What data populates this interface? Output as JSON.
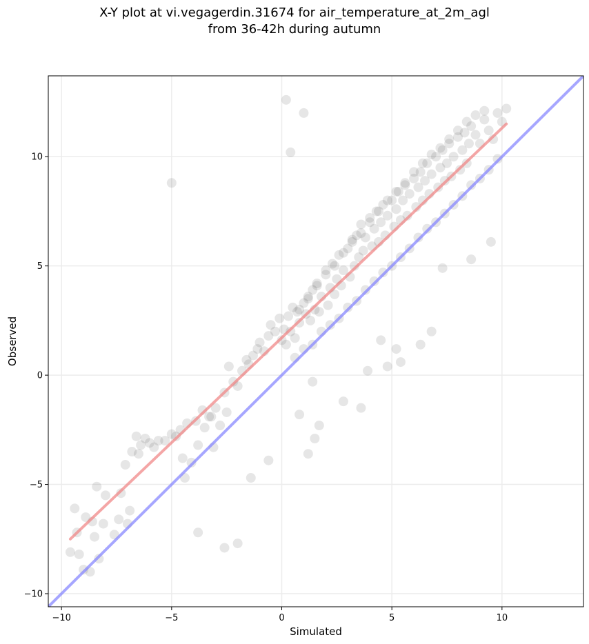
{
  "chart_data": {
    "type": "scatter",
    "title_line1": "X-Y plot at vi.vegagerdin.31674 for air_temperature_at_2m_agl",
    "title_line2": "from 36-42h during autumn",
    "xlabel": "Simulated",
    "ylabel": "Observed",
    "xlim": [
      -10.6,
      13.7
    ],
    "ylim": [
      -10.6,
      13.7
    ],
    "xticks": [
      -10,
      -5,
      0,
      5,
      10
    ],
    "yticks": [
      -10,
      -5,
      0,
      5,
      10
    ],
    "xtick_labels": [
      "−10",
      "−5",
      "0",
      "5",
      "10"
    ],
    "ytick_labels": [
      "−10",
      "−5",
      "0",
      "5",
      "10"
    ],
    "grid": true,
    "point_color": "#333333",
    "point_opacity": 0.12,
    "fit_line": {
      "color": "#f08080",
      "x": [
        -9.6,
        10.2
      ],
      "y": [
        -7.5,
        11.5
      ]
    },
    "identity_line": {
      "color": "#8080ff",
      "x": [
        -10.6,
        13.7
      ],
      "y": [
        -10.6,
        13.7
      ]
    },
    "points_x": [
      -9.6,
      -9.4,
      -9.3,
      -9.2,
      -9.0,
      -8.9,
      -8.7,
      -8.6,
      -8.5,
      -8.4,
      -8.3,
      -8.1,
      -8.0,
      -7.6,
      -7.4,
      -7.3,
      -7.1,
      -7.0,
      -6.9,
      -6.8,
      -6.6,
      -6.5,
      -6.4,
      -6.2,
      -6.0,
      -5.8,
      -5.6,
      -5.3,
      -5.0,
      -4.8,
      -4.6,
      -4.5,
      -4.3,
      -4.1,
      -3.9,
      -3.8,
      -3.6,
      -3.5,
      -3.3,
      -3.1,
      -3.0,
      -2.8,
      -2.6,
      -2.5,
      -2.4,
      -2.2,
      -2.0,
      -1.8,
      -1.6,
      -1.5,
      -1.3,
      -1.1,
      -1.0,
      -0.8,
      -0.6,
      -0.5,
      -0.3,
      -0.1,
      0.0,
      0.1,
      0.2,
      0.3,
      0.4,
      0.5,
      0.6,
      0.7,
      0.8,
      1.0,
      1.1,
      1.2,
      1.3,
      1.4,
      1.5,
      1.6,
      1.7,
      1.8,
      2.0,
      2.1,
      2.2,
      2.3,
      2.4,
      2.5,
      2.6,
      2.7,
      2.8,
      3.0,
      3.1,
      3.2,
      3.3,
      3.4,
      3.5,
      3.6,
      3.7,
      3.8,
      4.0,
      4.1,
      4.2,
      4.3,
      4.4,
      4.5,
      4.6,
      4.7,
      4.8,
      5.0,
      5.1,
      5.2,
      5.3,
      5.4,
      5.5,
      5.6,
      5.7,
      5.8,
      6.0,
      6.1,
      6.2,
      6.3,
      6.4,
      6.5,
      6.6,
      6.7,
      6.8,
      7.0,
      7.1,
      7.2,
      7.3,
      7.4,
      7.5,
      7.6,
      7.7,
      7.8,
      8.0,
      8.1,
      8.2,
      8.3,
      8.4,
      8.5,
      8.6,
      8.8,
      9.0,
      9.2,
      9.4,
      9.6,
      9.8,
      10.0,
      10.2,
      0.2,
      0.6,
      1.0,
      1.4,
      1.8,
      2.2,
      2.6,
      3.0,
      3.4,
      3.8,
      4.2,
      4.6,
      5.0,
      5.4,
      5.8,
      6.2,
      6.6,
      7.0,
      7.4,
      7.8,
      8.2,
      8.6,
      9.0,
      9.4,
      9.8,
      0.4,
      0.8,
      1.2,
      1.6,
      2.0,
      2.4,
      2.8,
      3.2,
      3.6,
      4.0,
      4.4,
      4.8,
      5.2,
      5.6,
      6.0,
      6.4,
      6.8,
      7.2,
      7.6,
      8.0,
      8.4,
      8.8,
      9.2,
      1.0,
      1.2,
      1.5,
      1.7,
      2.8,
      3.6,
      3.9,
      4.5,
      4.8,
      5.2,
      5.4,
      6.3,
      6.8,
      7.3,
      8.6,
      9.5,
      -5.0,
      -3.8,
      -2.6,
      -2.0,
      -4.4,
      -3.2,
      -1.4,
      -0.6,
      0.8,
      1.4
    ],
    "points_y": [
      -8.1,
      -6.1,
      -7.2,
      -8.2,
      -8.9,
      -6.5,
      -9.0,
      -6.7,
      -7.4,
      -5.1,
      -8.4,
      -6.8,
      -5.5,
      -7.3,
      -6.6,
      -5.4,
      -4.1,
      -6.8,
      -6.2,
      -3.5,
      -2.8,
      -3.6,
      -3.2,
      -2.9,
      -3.1,
      -3.3,
      -3.0,
      -3.0,
      -2.7,
      -2.8,
      -2.5,
      -3.8,
      -2.2,
      -4.0,
      -2.1,
      -3.2,
      -1.6,
      -2.4,
      -1.9,
      -3.3,
      -1.5,
      -2.3,
      -0.8,
      -1.7,
      0.4,
      -0.3,
      -0.5,
      0.2,
      0.7,
      0.5,
      0.9,
      1.2,
      1.5,
      1.1,
      1.8,
      2.3,
      2.0,
      2.6,
      1.6,
      2.1,
      1.4,
      2.7,
      2.0,
      3.1,
      1.7,
      2.9,
      2.4,
      3.3,
      2.8,
      3.6,
      2.5,
      3.9,
      3.0,
      4.2,
      2.9,
      3.6,
      4.8,
      3.2,
      4.0,
      5.1,
      3.7,
      4.4,
      5.5,
      4.1,
      4.8,
      5.8,
      4.5,
      6.2,
      5.0,
      6.4,
      5.4,
      6.9,
      5.7,
      6.3,
      7.2,
      5.9,
      6.7,
      7.5,
      6.1,
      7.0,
      7.8,
      6.4,
      7.3,
      8.0,
      6.8,
      7.6,
      8.4,
      7.1,
      8.0,
      8.7,
      7.3,
      8.3,
      9.0,
      7.7,
      8.6,
      9.3,
      8.0,
      8.9,
      9.7,
      8.3,
      9.2,
      10.0,
      8.6,
      9.5,
      10.3,
      8.9,
      9.7,
      10.6,
      9.1,
      10.0,
      10.9,
      9.4,
      10.3,
      11.1,
      9.7,
      10.6,
      11.4,
      11.0,
      10.6,
      11.7,
      11.2,
      10.8,
      12.0,
      11.6,
      12.2,
      12.6,
      0.8,
      1.2,
      1.4,
      2.0,
      2.3,
      2.6,
      3.1,
      3.4,
      3.9,
      4.3,
      4.7,
      5.0,
      5.4,
      5.8,
      6.3,
      6.7,
      7.0,
      7.4,
      7.8,
      8.2,
      8.7,
      9.0,
      9.4,
      9.9,
      10.2,
      3.0,
      3.5,
      4.1,
      4.6,
      5.0,
      5.6,
      6.1,
      6.5,
      7.0,
      7.5,
      8.0,
      8.4,
      8.8,
      9.3,
      9.7,
      10.1,
      10.4,
      10.8,
      11.2,
      11.6,
      11.9,
      12.1,
      12.0,
      -3.6,
      -2.9,
      -2.3,
      -1.2,
      -1.5,
      0.2,
      1.6,
      0.4,
      1.2,
      0.6,
      1.4,
      2.0,
      4.9,
      5.3,
      6.1,
      8.8,
      -7.2,
      -7.9,
      -7.7,
      -4.7,
      -1.9,
      -4.7,
      -3.9,
      -1.8,
      -0.3,
      -2.5
    ]
  }
}
